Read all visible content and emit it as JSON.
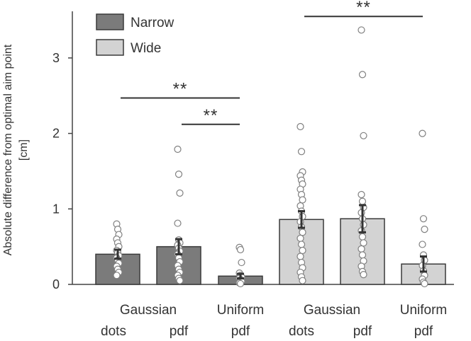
{
  "chart_data": {
    "type": "bar",
    "ylabel_line1": "Absolute difference from optimal aim point",
    "ylabel_line2": "[cm]",
    "ylim": [
      0,
      3.6
    ],
    "yticks": [
      0,
      1,
      2,
      3
    ],
    "legend": {
      "placement": "top-left",
      "entries": [
        {
          "name": "Narrow",
          "color": "#7b7b7b"
        },
        {
          "name": "Wide",
          "color": "#d3d3d3"
        }
      ]
    },
    "categories": [
      {
        "top": "Gaussian",
        "bottom": "dots"
      },
      {
        "top": "",
        "bottom": "pdf"
      },
      {
        "top": "Uniform",
        "bottom": "pdf"
      },
      {
        "top": "Gaussian",
        "bottom": "dots"
      },
      {
        "top": "",
        "bottom": "pdf"
      },
      {
        "top": "Uniform",
        "bottom": "pdf"
      }
    ],
    "series": [
      {
        "name": "Narrow",
        "color": "#7b7b7b",
        "bars": [
          {
            "value": 0.4,
            "error": 0.06,
            "points": [
              0.8,
              0.73,
              0.66,
              0.6,
              0.55,
              0.5,
              0.45,
              0.42,
              0.38,
              0.35,
              0.32,
              0.28,
              0.24,
              0.2,
              0.16,
              0.12
            ]
          },
          {
            "value": 0.5,
            "error": 0.1,
            "points": [
              1.79,
              1.46,
              1.21,
              0.81,
              0.59,
              0.55,
              0.52,
              0.48,
              0.44,
              0.4,
              0.35,
              0.3,
              0.25,
              0.2,
              0.16,
              0.12,
              0.08,
              0.05
            ]
          },
          {
            "value": 0.11,
            "error": 0.03,
            "points": [
              0.49,
              0.46,
              0.29,
              0.15,
              0.12,
              0.1,
              0.08,
              0.06,
              0.04,
              0.02,
              0.01
            ]
          }
        ]
      },
      {
        "name": "Wide",
        "color": "#d3d3d3",
        "bars": [
          {
            "value": 0.86,
            "error": 0.11,
            "points": [
              2.09,
              1.76,
              1.49,
              1.44,
              1.38,
              1.33,
              1.26,
              1.19,
              1.12,
              1.04,
              0.97,
              0.9,
              0.83,
              0.76,
              0.69,
              0.61,
              0.53,
              0.45,
              0.37,
              0.29,
              0.22,
              0.16,
              0.1,
              0.05
            ]
          },
          {
            "value": 0.87,
            "error": 0.18,
            "points": [
              3.37,
              2.78,
              1.97,
              1.19,
              1.1,
              1.02,
              0.95,
              0.87,
              0.79,
              0.71,
              0.63,
              0.55,
              0.47,
              0.39,
              0.31,
              0.24,
              0.17,
              0.13
            ]
          },
          {
            "value": 0.27,
            "error": 0.1,
            "points": [
              2.0,
              0.87,
              0.73,
              0.53,
              0.39,
              0.32,
              0.25,
              0.18,
              0.12,
              0.07,
              0.03,
              0.01
            ]
          }
        ]
      }
    ],
    "significance": [
      {
        "from": 0,
        "to": 2,
        "level": 2.47,
        "label": "**"
      },
      {
        "from": 1,
        "to": 2,
        "level": 2.12,
        "label": "**"
      },
      {
        "from": 3,
        "to": 5,
        "level": 3.55,
        "label": "**"
      }
    ]
  }
}
